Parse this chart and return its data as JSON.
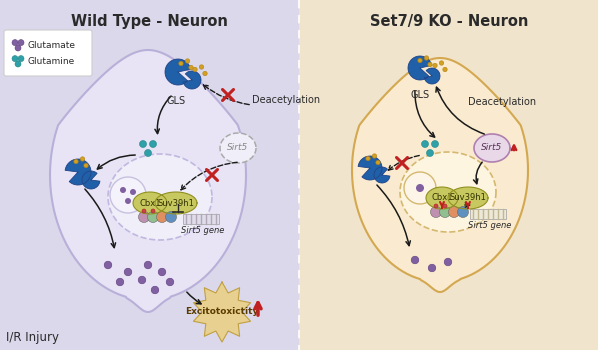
{
  "title_left": "Wild Type - Neuron",
  "title_right": "Set7/9 KO - Neuron",
  "bg_left": "#dcd8eb",
  "bg_right": "#f0e4cc",
  "cell_left_color": "#e8e4f5",
  "cell_left_edge": "#b8b0d8",
  "cell_right_color": "#faebd0",
  "cell_right_edge": "#d4a850",
  "nucleus_left_color": "#f0eef8",
  "nucleus_left_edge": "#c0b8e0",
  "nucleus_right_color": "#fef5e0",
  "nucleus_right_edge": "#d4b870",
  "inner_nuc_left": "#e8e4f8",
  "inner_nuc_left_edge": "#c8c0e0",
  "inner_nuc_right": "#faecd8",
  "inner_nuc_right_edge": "#d4b870",
  "gls_blue": "#2060a8",
  "enzyme_blue": "#2060a8",
  "glutamate_purple": "#8060a0",
  "glutamine_teal": "#30a0a8",
  "yellow_dot": "#d4a020",
  "cbx1_color": "#c8c860",
  "suv39h1_color": "#c8c860",
  "cbx1_edge": "#909020",
  "sirt5_left_fill": "#f0eef8",
  "sirt5_left_edge": "#aaaaaa",
  "sirt5_right_fill": "#e8d8e8",
  "sirt5_right_edge": "#b080b0",
  "histone_colors": [
    "#c090b0",
    "#90c090",
    "#e09060",
    "#6090c0"
  ],
  "gene_stripe_color": "#b0a8b8",
  "excito_fill": "#e8d090",
  "excito_edge": "#c0a040",
  "red_color": "#c02020",
  "arrow_color": "#1a1a1a",
  "title_fontsize": 10.5,
  "label_fontsize": 7,
  "small_fontsize": 6,
  "legend_glutamate": "Glutamate",
  "legend_glutamine": "Glutamine",
  "gls_label": "GLS",
  "deacetylation_label": "Deacetylation",
  "sirt5_label": "Sirt5",
  "cbx1_label": "Cbx1",
  "suv39h1_label": "Suv39h1",
  "gene_label": "Sirt5 gene",
  "excito_label": "Excitotoxictity",
  "ir_label": "I/R Injury"
}
